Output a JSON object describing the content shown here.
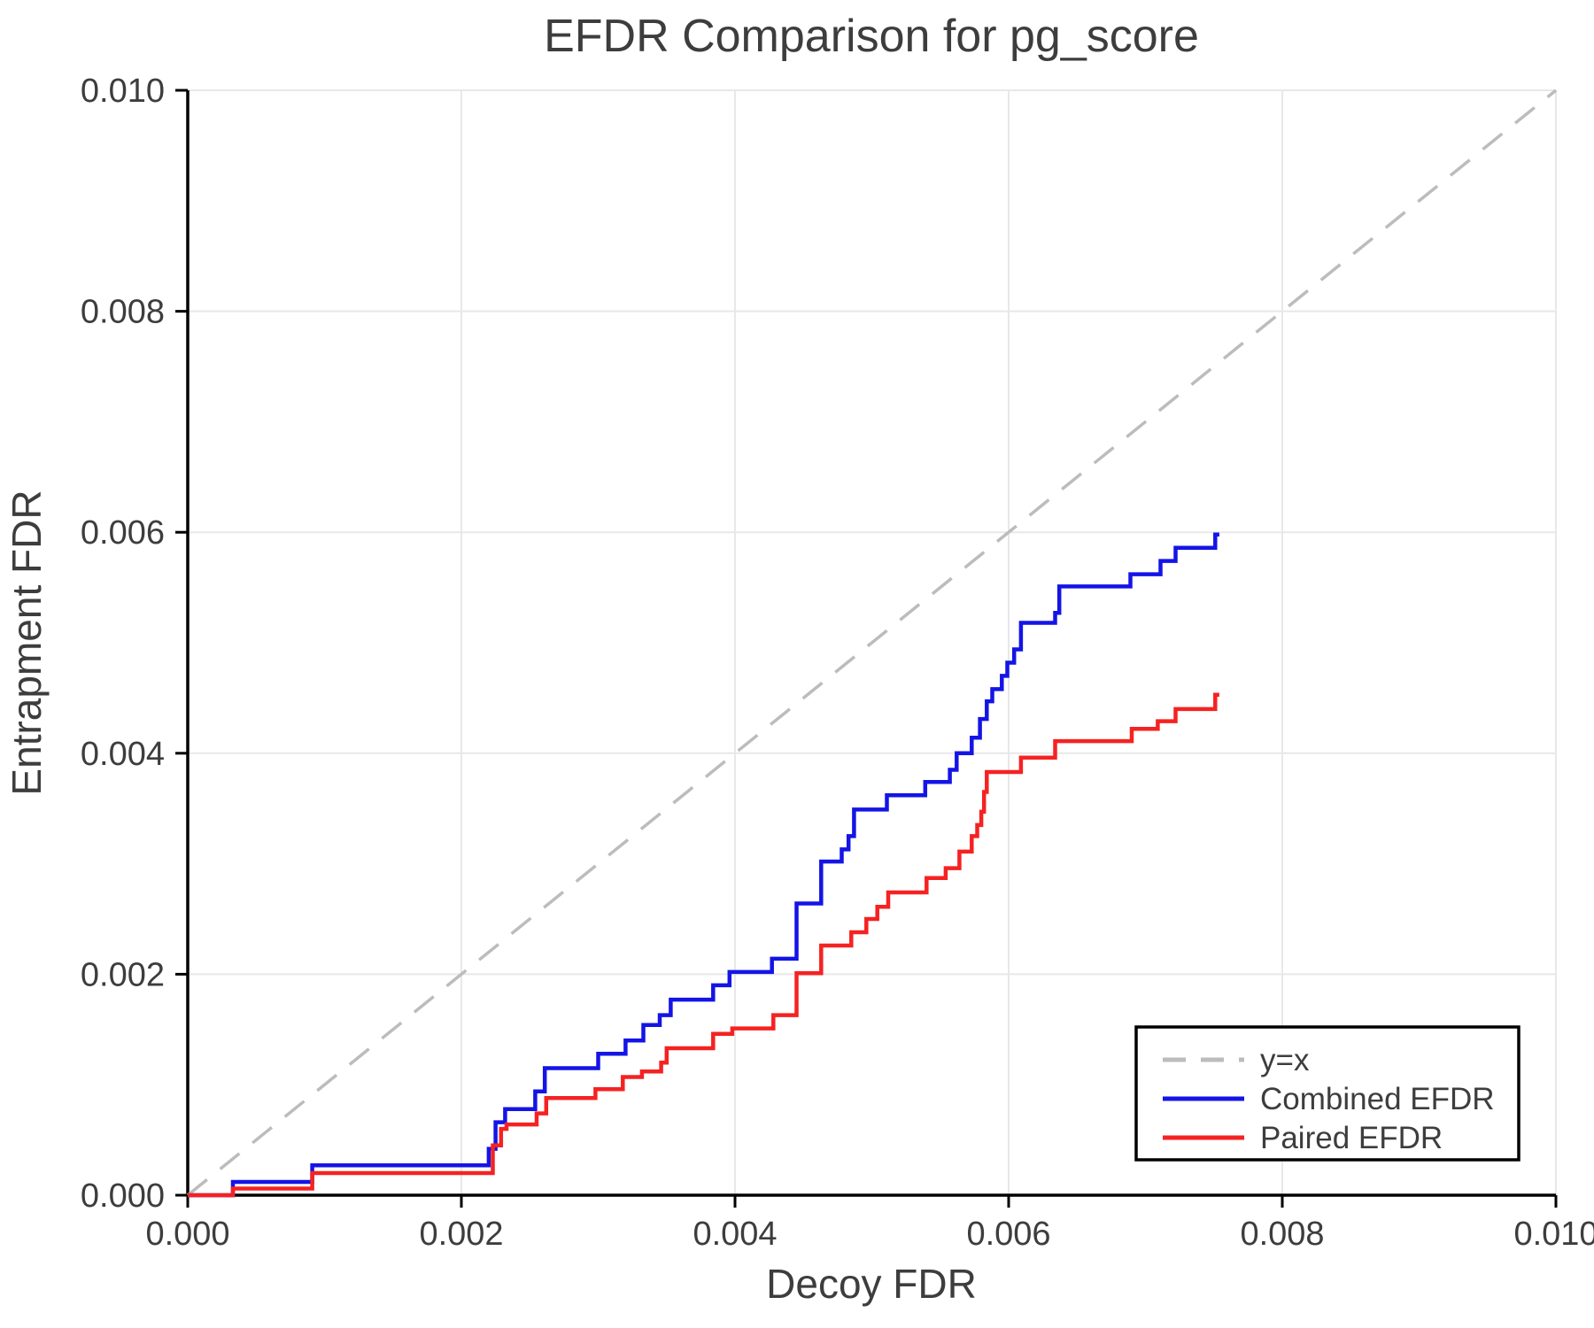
{
  "chart_data": {
    "type": "line",
    "title": "EFDR Comparison for pg_score",
    "xlabel": "Decoy FDR",
    "ylabel": "Entrapment FDR",
    "xlim": [
      0.0,
      0.01
    ],
    "ylim": [
      0.0,
      0.01
    ],
    "grid": true,
    "xticks": {
      "values": [
        0.0,
        0.002,
        0.004,
        0.006,
        0.008,
        0.01
      ],
      "labels": [
        "0.000",
        "0.002",
        "0.004",
        "0.006",
        "0.008",
        "0.010"
      ]
    },
    "yticks": {
      "values": [
        0.0,
        0.002,
        0.004,
        0.006,
        0.008,
        0.01
      ],
      "labels": [
        "0.000",
        "0.002",
        "0.004",
        "0.006",
        "0.008",
        "0.010"
      ]
    },
    "colors": {
      "identity": "#bcbcbc",
      "combined": "#1414e6",
      "paired": "#f52222",
      "grid": "#e8e8e8",
      "axis": "#000000",
      "text": "#3d3d3d"
    },
    "legend": {
      "position": "lower right",
      "entries": [
        {
          "label": "y=x",
          "color": "#bcbcbc",
          "dashed": true
        },
        {
          "label": "Combined EFDR",
          "color": "#1414e6",
          "dashed": false
        },
        {
          "label": "Paired EFDR",
          "color": "#f52222",
          "dashed": false
        }
      ]
    },
    "series": [
      {
        "name": "y=x",
        "kind": "line",
        "dashed": true,
        "color": "#bcbcbc",
        "x": [
          0.0,
          0.01
        ],
        "y": [
          0.0,
          0.01
        ]
      },
      {
        "name": "Combined EFDR",
        "kind": "step",
        "dashed": false,
        "color": "#1414e6",
        "start": [
          0.0,
          0.0
        ],
        "end_x": 0.00754,
        "points": [
          [
            0.00033,
            0.00012
          ],
          [
            0.00091,
            0.00027
          ],
          [
            0.0022,
            0.00042
          ],
          [
            0.00225,
            0.00066
          ],
          [
            0.00232,
            0.00078
          ],
          [
            0.00254,
            0.00094
          ],
          [
            0.00261,
            0.00115
          ],
          [
            0.003,
            0.00128
          ],
          [
            0.0032,
            0.0014
          ],
          [
            0.00333,
            0.00154
          ],
          [
            0.00345,
            0.00163
          ],
          [
            0.00353,
            0.00177
          ],
          [
            0.00384,
            0.0019
          ],
          [
            0.00396,
            0.00202
          ],
          [
            0.00427,
            0.00214
          ],
          [
            0.00445,
            0.00264
          ],
          [
            0.00463,
            0.00302
          ],
          [
            0.00478,
            0.00313
          ],
          [
            0.00483,
            0.00325
          ],
          [
            0.00487,
            0.00349
          ],
          [
            0.00511,
            0.00362
          ],
          [
            0.00539,
            0.00374
          ],
          [
            0.00557,
            0.00385
          ],
          [
            0.00562,
            0.004
          ],
          [
            0.00573,
            0.00414
          ],
          [
            0.00579,
            0.00431
          ],
          [
            0.00584,
            0.00447
          ],
          [
            0.00588,
            0.00458
          ],
          [
            0.00595,
            0.0047
          ],
          [
            0.00599,
            0.00482
          ],
          [
            0.00604,
            0.00494
          ],
          [
            0.00609,
            0.00518
          ],
          [
            0.00634,
            0.00527
          ],
          [
            0.00637,
            0.00551
          ],
          [
            0.00689,
            0.00562
          ],
          [
            0.00711,
            0.00574
          ],
          [
            0.00722,
            0.00586
          ],
          [
            0.00751,
            0.00598
          ]
        ]
      },
      {
        "name": "Paired EFDR",
        "kind": "step",
        "dashed": false,
        "color": "#f52222",
        "start": [
          0.0,
          0.0
        ],
        "end_x": 0.00754,
        "points": [
          [
            0.00033,
            6e-05
          ],
          [
            0.00091,
            0.0002
          ],
          [
            0.00223,
            0.00045
          ],
          [
            0.00229,
            0.0006
          ],
          [
            0.00233,
            0.00064
          ],
          [
            0.00255,
            0.00074
          ],
          [
            0.00262,
            0.00088
          ],
          [
            0.00298,
            0.00096
          ],
          [
            0.00318,
            0.00107
          ],
          [
            0.00332,
            0.00112
          ],
          [
            0.00346,
            0.0012
          ],
          [
            0.0035,
            0.00133
          ],
          [
            0.00384,
            0.00146
          ],
          [
            0.00398,
            0.00151
          ],
          [
            0.00428,
            0.00163
          ],
          [
            0.00445,
            0.00201
          ],
          [
            0.00463,
            0.00226
          ],
          [
            0.00485,
            0.00238
          ],
          [
            0.00496,
            0.0025
          ],
          [
            0.00504,
            0.00261
          ],
          [
            0.00512,
            0.00274
          ],
          [
            0.0054,
            0.00287
          ],
          [
            0.00554,
            0.00296
          ],
          [
            0.00564,
            0.00311
          ],
          [
            0.00573,
            0.00325
          ],
          [
            0.00577,
            0.00335
          ],
          [
            0.0058,
            0.00347
          ],
          [
            0.00582,
            0.00365
          ],
          [
            0.00584,
            0.00383
          ],
          [
            0.00609,
            0.00396
          ],
          [
            0.00634,
            0.00411
          ],
          [
            0.0069,
            0.00422
          ],
          [
            0.00709,
            0.00429
          ],
          [
            0.00722,
            0.0044
          ],
          [
            0.00751,
            0.00453
          ]
        ]
      }
    ]
  }
}
